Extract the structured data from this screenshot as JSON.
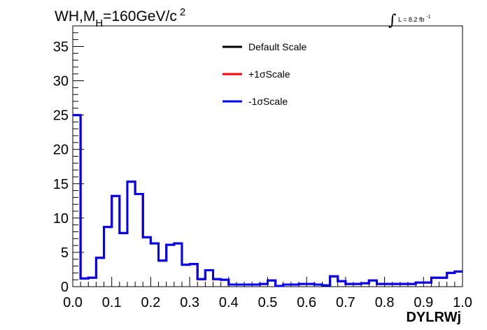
{
  "chart_data": {
    "type": "line",
    "title": {
      "main": "WH,M",
      "sub": "H",
      "rest": "=160GeV/c",
      "sup": "2"
    },
    "xlabel": "DYLRWj",
    "ylabel": "",
    "luminosity": {
      "symbol": "∫",
      "text": "L = 8.2 fb",
      "sup": "-1"
    },
    "xlim": [
      0,
      1
    ],
    "ylim": [
      0,
      38
    ],
    "xticks": [
      "0.0",
      "0.1",
      "0.2",
      "0.3",
      "0.4",
      "0.5",
      "0.6",
      "0.7",
      "0.8",
      "0.9",
      "1.0"
    ],
    "yticks": [
      "0",
      "5",
      "10",
      "15",
      "20",
      "25",
      "30",
      "35"
    ],
    "grid": false,
    "legend_position": "top-center",
    "bin_edges": [
      0,
      0.02,
      0.04,
      0.06,
      0.08,
      0.1,
      0.12,
      0.14,
      0.16,
      0.18,
      0.2,
      0.22,
      0.24,
      0.26,
      0.28,
      0.3,
      0.32,
      0.34,
      0.36,
      0.38,
      0.4,
      0.42,
      0.44,
      0.46,
      0.48,
      0.5,
      0.52,
      0.54,
      0.56,
      0.58,
      0.6,
      0.62,
      0.64,
      0.66,
      0.68,
      0.7,
      0.72,
      0.74,
      0.76,
      0.78,
      0.8,
      0.82,
      0.84,
      0.86,
      0.88,
      0.9,
      0.92,
      0.94,
      0.96,
      0.98,
      1.0
    ],
    "series": [
      {
        "name": "Default Scale",
        "color": "#000000",
        "values": [
          25.0,
          1.2,
          1.3,
          4.2,
          8.7,
          13.2,
          7.8,
          15.3,
          13.5,
          7.2,
          6.3,
          3.8,
          6.1,
          6.3,
          3.2,
          3.3,
          1.1,
          2.4,
          1.1,
          1.0,
          0.3,
          0.3,
          0.3,
          0.3,
          0.4,
          0.9,
          0.1,
          0.3,
          0.3,
          0.4,
          0.4,
          0.3,
          0.2,
          1.5,
          0.8,
          0.4,
          0.4,
          0.5,
          0.9,
          0.4,
          0.4,
          0.4,
          0.4,
          0.4,
          0.6,
          0.6,
          1.3,
          1.3,
          2.0,
          2.2
        ]
      },
      {
        "name": "+1σScale",
        "color": "#ff0000",
        "values": [
          25.0,
          1.2,
          1.3,
          4.2,
          8.7,
          13.2,
          7.8,
          15.3,
          13.5,
          7.2,
          6.3,
          3.8,
          6.1,
          6.3,
          3.2,
          3.3,
          1.1,
          2.4,
          1.1,
          1.0,
          0.3,
          0.3,
          0.3,
          0.3,
          0.4,
          0.9,
          0.1,
          0.3,
          0.3,
          0.4,
          0.4,
          0.3,
          0.2,
          1.5,
          0.8,
          0.4,
          0.4,
          0.5,
          0.9,
          0.4,
          0.4,
          0.4,
          0.4,
          0.4,
          0.6,
          0.6,
          1.3,
          1.3,
          2.0,
          2.2
        ]
      },
      {
        "name": "-1σScale",
        "color": "#0000ff",
        "values": [
          25.0,
          1.2,
          1.3,
          4.2,
          8.7,
          13.2,
          7.8,
          15.3,
          13.5,
          7.2,
          6.3,
          3.8,
          6.1,
          6.3,
          3.2,
          3.3,
          1.1,
          2.4,
          1.1,
          1.0,
          0.3,
          0.3,
          0.3,
          0.3,
          0.4,
          0.9,
          0.1,
          0.3,
          0.3,
          0.4,
          0.4,
          0.3,
          0.2,
          1.5,
          0.8,
          0.4,
          0.4,
          0.5,
          0.9,
          0.4,
          0.4,
          0.4,
          0.4,
          0.4,
          0.6,
          0.6,
          1.3,
          1.3,
          2.0,
          2.2
        ]
      }
    ]
  }
}
